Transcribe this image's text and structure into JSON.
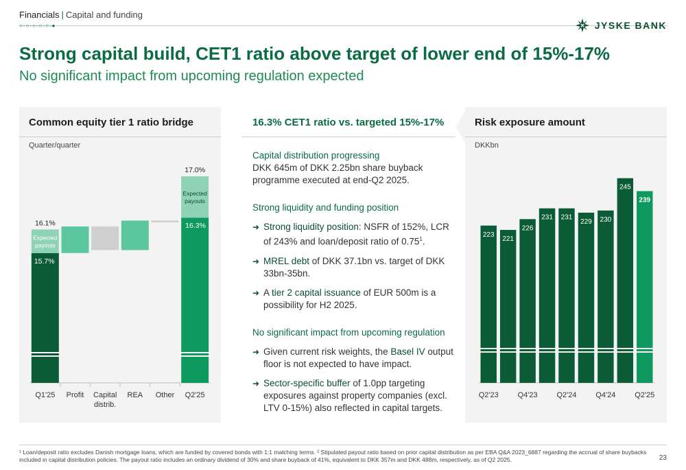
{
  "header": {
    "section": "Financials",
    "subsection": "Capital and funding",
    "brand": "JYSKE BANK"
  },
  "title": "Strong capital build, CET1 ratio above target of lower end of 15%-17%",
  "subtitle": "No significant impact from upcoming regulation expected",
  "left_panel": {
    "heading": "Common equity tier 1 ratio bridge",
    "unit": "Quarter/quarter"
  },
  "middle_panel": {
    "heading": "16.3% CET1 ratio vs. targeted 15%-17%",
    "s1_title": "Capital distribution progressing",
    "s1_text": "DKK 645m of DKK 2.25bn share buyback programme executed at end-Q2 2025.",
    "s2_title": "Strong liquidity and funding position",
    "b1_bold": "Strong liquidity position",
    "b1_text": ": NSFR of 152%, LCR of 243% and loan/deposit ratio of 0.75",
    "b1_sup": "1",
    "b1_end": ".",
    "b2_bold": "MREL debt",
    "b2_text": " of DKK 37.1bn vs. target of DKK 33bn-35bn.",
    "b3_pre": "A ",
    "b3_bold": "tier 2 capital issuance",
    "b3_text": " of EUR 500m is a possibility for H2 2025.",
    "s3_title": "No significant impact from upcoming regulation",
    "b4_pre": "Given current risk weights, the ",
    "b4_bold": "Basel IV",
    "b4_text": " output floor is not expected to have impact.",
    "b5_bold": "Sector-specific buffer",
    "b5_text": " of 1.0pp targeting exposures against property companies (excl. LTV 0-15%) also reflected in capital targets."
  },
  "right_panel": {
    "heading": "Risk exposure amount",
    "unit": "DKKbn"
  },
  "footnote": "¹ Loan/deposit ratio excludes Danish mortgage loans, which are funded by covered bonds with 1:1 matching terms. ² Stipulated payout ratio based on prior capital distribution as per EBA Q&A 2023_6887 regarding the accrual of share buybacks included in capital distribution policies. The payout ratio includes an ordinary dividend of 30% and share buyback of 41%, equivalent to DKK 357m and DKK 488m, respectively, as of Q2 2025.",
  "page_number": "23",
  "colors": {
    "dark_green": "#0b5c36",
    "mid_green": "#0e9a5e",
    "light_green": "#5cc79e",
    "payout_green": "#8fd2b5",
    "grey": "#cfcfcf"
  },
  "chart_data": [
    {
      "type": "bar",
      "subtype": "waterfall",
      "categories": [
        "Q1'25",
        "Profit",
        "Capital distrib.",
        "REA",
        "Other",
        "Q2'25"
      ],
      "category_lines": [
        [
          "Q1'25"
        ],
        [
          "Profit"
        ],
        [
          "Capital",
          "distrib."
        ],
        [
          "REA"
        ],
        [
          "Other"
        ],
        [
          "Q2'25"
        ]
      ],
      "axis_break": true,
      "ylim": [
        13.5,
        17.5
      ],
      "bars": [
        {
          "name": "Q1'25",
          "kind": "total",
          "base": 13.5,
          "value": 15.7,
          "payout_top": 16.1,
          "label": "15.7%",
          "top_label": "16.1%",
          "payout_label": "Expected payouts"
        },
        {
          "name": "Profit",
          "kind": "increase",
          "from": 15.7,
          "to": 16.15
        },
        {
          "name": "Capital distrib.",
          "kind": "decrease",
          "from": 16.15,
          "to": 15.75
        },
        {
          "name": "REA",
          "kind": "increase",
          "from": 15.75,
          "to": 16.25
        },
        {
          "name": "Other",
          "kind": "decrease",
          "from": 16.25,
          "to": 16.22
        },
        {
          "name": "Q2'25",
          "kind": "total",
          "base": 13.5,
          "value": 16.3,
          "payout_top": 17.0,
          "label": "16.3%",
          "top_label": "17.0%",
          "payout_label": "Expected payouts"
        }
      ]
    },
    {
      "type": "bar",
      "categories": [
        "Q2'23",
        "Q3'23",
        "Q4'23",
        "Q1'24",
        "Q2'24",
        "Q3'24",
        "Q4'24",
        "Q1'25",
        "Q2'25"
      ],
      "x_tick_labels": [
        "Q2'23",
        "Q4'23",
        "Q2'24",
        "Q4'24",
        "Q2'25"
      ],
      "values": [
        223,
        221,
        226,
        231,
        231,
        229,
        230,
        245,
        239
      ],
      "axis_break": true,
      "ylim": [
        150,
        250
      ]
    }
  ]
}
